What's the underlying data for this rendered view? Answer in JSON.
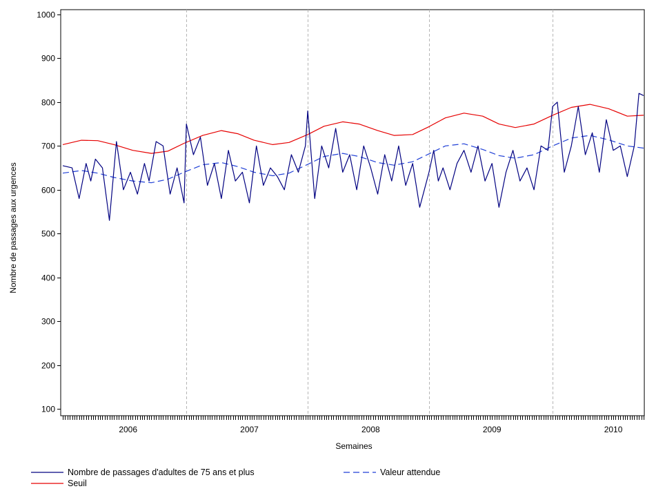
{
  "chart_data": {
    "type": "line",
    "xlabel": "Semaines",
    "ylabel": "Nombre de passages aux urgences",
    "ylim": [
      100,
      1000
    ],
    "y_ticks": [
      100,
      200,
      300,
      400,
      500,
      600,
      700,
      800,
      900,
      1000
    ],
    "x_tick_labels": [
      "2006",
      "2007",
      "2008",
      "2009",
      "2010"
    ],
    "x_range_weeks": [
      0,
      249
    ],
    "x_tick_positions_weeks": [
      28,
      80,
      132,
      184,
      236
    ],
    "year_separators_weeks": [
      53,
      105,
      157,
      210
    ],
    "x_minor_ticks": true,
    "grid": false,
    "legend_placement": "bottom",
    "series": [
      {
        "name": "Nombre de passages d'adultes de 75 ans et plus",
        "color": "#000080",
        "dash": "solid",
        "x": [
          0,
          4,
          7,
          10,
          12,
          14,
          17,
          20,
          23,
          26,
          29,
          32,
          35,
          37,
          40,
          43,
          46,
          49,
          52,
          53,
          56,
          59,
          62,
          65,
          68,
          71,
          74,
          77,
          80,
          83,
          86,
          89,
          92,
          95,
          98,
          101,
          104,
          105,
          108,
          111,
          114,
          117,
          120,
          123,
          126,
          129,
          132,
          135,
          138,
          141,
          144,
          147,
          150,
          153,
          157,
          159,
          161,
          163,
          166,
          169,
          172,
          175,
          178,
          181,
          184,
          187,
          190,
          193,
          196,
          199,
          202,
          205,
          208,
          210,
          212,
          215,
          218,
          221,
          224,
          227,
          230,
          233,
          236,
          239,
          242,
          245,
          247,
          249
        ],
        "values": [
          655,
          650,
          580,
          660,
          620,
          670,
          650,
          530,
          710,
          600,
          640,
          590,
          660,
          620,
          710,
          700,
          590,
          650,
          570,
          750,
          680,
          720,
          610,
          660,
          580,
          690,
          620,
          640,
          570,
          700,
          610,
          650,
          630,
          600,
          680,
          640,
          700,
          780,
          580,
          700,
          650,
          740,
          640,
          680,
          600,
          700,
          650,
          590,
          680,
          620,
          700,
          610,
          660,
          560,
          640,
          690,
          620,
          650,
          600,
          660,
          690,
          640,
          700,
          620,
          660,
          560,
          640,
          690,
          620,
          650,
          600,
          700,
          690,
          790,
          800,
          640,
          700,
          790,
          680,
          730,
          640,
          760,
          690,
          700,
          630,
          700,
          820,
          815
        ]
      },
      {
        "name": "Valeur attendue",
        "color": "#1f3fd6",
        "dash": "dashed",
        "x": [
          0,
          8,
          15,
          22,
          30,
          38,
          45,
          52,
          60,
          68,
          75,
          82,
          90,
          97,
          105,
          112,
          120,
          127,
          135,
          142,
          150,
          157,
          164,
          172,
          180,
          187,
          194,
          202,
          210,
          218,
          226,
          234,
          242,
          249
        ],
        "values": [
          638,
          644,
          638,
          628,
          620,
          616,
          624,
          640,
          657,
          662,
          653,
          640,
          632,
          638,
          658,
          676,
          683,
          676,
          662,
          656,
          664,
          682,
          700,
          705,
          692,
          678,
          672,
          680,
          700,
          718,
          724,
          714,
          700,
          695
        ]
      },
      {
        "name": "Seuil",
        "color": "#e60000",
        "dash": "solid",
        "x": [
          0,
          8,
          15,
          22,
          30,
          38,
          45,
          52,
          60,
          68,
          75,
          82,
          90,
          97,
          105,
          112,
          120,
          127,
          135,
          142,
          150,
          157,
          164,
          172,
          180,
          187,
          194,
          202,
          210,
          218,
          226,
          234,
          242,
          249
        ],
        "values": [
          703,
          713,
          712,
          703,
          690,
          683,
          688,
          706,
          724,
          735,
          728,
          713,
          703,
          708,
          726,
          745,
          755,
          750,
          735,
          724,
          726,
          744,
          764,
          775,
          768,
          750,
          742,
          750,
          770,
          788,
          795,
          785,
          768,
          770
        ]
      }
    ]
  }
}
